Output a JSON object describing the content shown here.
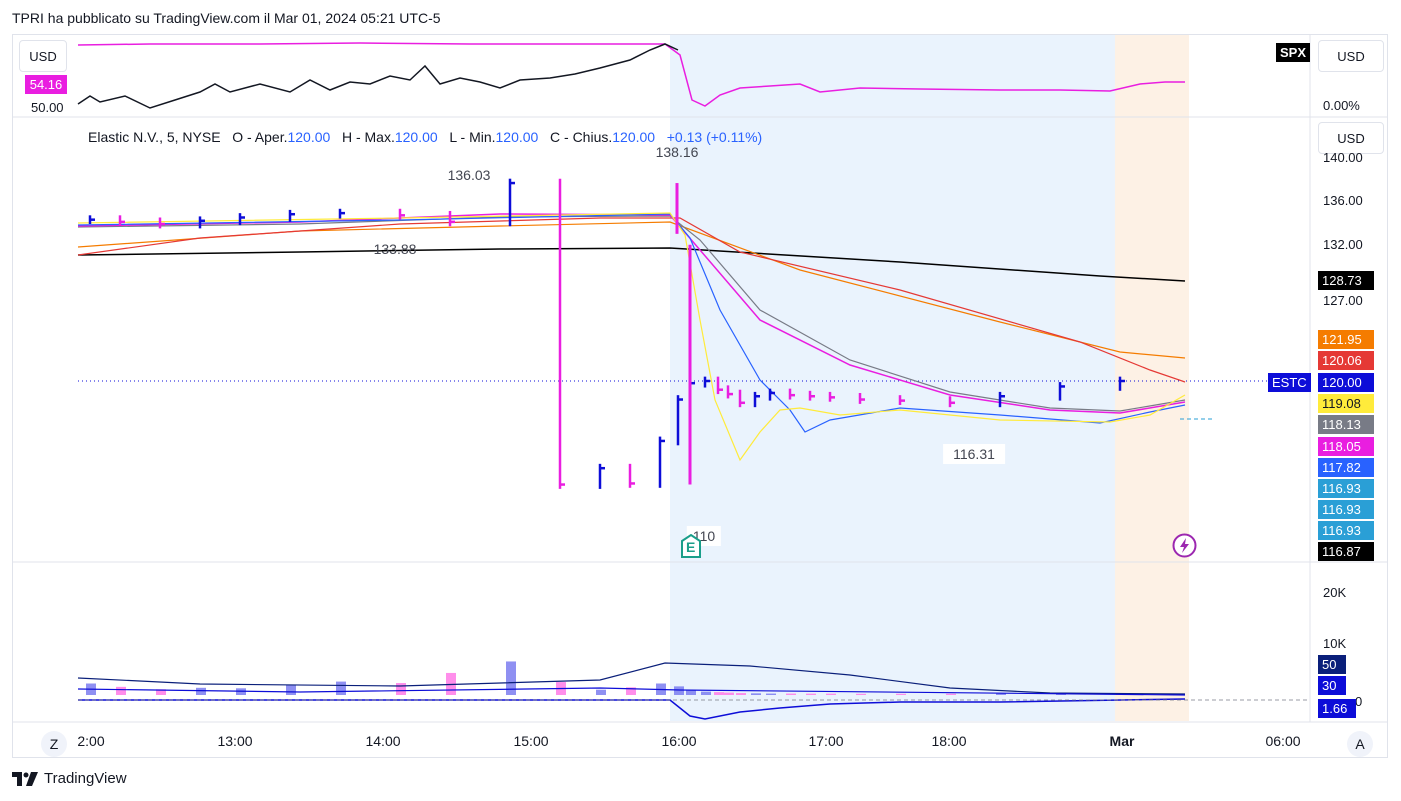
{
  "header": {
    "published": "TPRI ha pubblicato su TradingView.com il Mar 01, 2024 05:21 UTC-5"
  },
  "currency_pills": {
    "top_left": "USD",
    "top_right": "USD",
    "main_right": "USD"
  },
  "compare_pane": {
    "symbol": "SPX",
    "tag_value": "54.16",
    "left_value": "50.00",
    "right_value": "0.00%"
  },
  "legend": {
    "name": "Elastic N.V., 5, NYSE",
    "o_label": "O - Aper.",
    "o_value": "120.00",
    "h_label": "H - Max.",
    "h_value": "120.00",
    "l_label": "L - Min.",
    "l_value": "120.00",
    "c_label": "C - Chius.",
    "c_value": "120.00",
    "change": "+0.13 (+0.11%)"
  },
  "annotations": {
    "high_label": "138.16",
    "low_label": "110",
    "left_high": "136.03",
    "left_low": "133.88",
    "mid_low": "116.31"
  },
  "price_axis": [
    "140.00",
    "136.00",
    "132.00",
    "127.00"
  ],
  "price_tags": [
    {
      "text": "128.73",
      "bg": "#000000",
      "fg": "#ffffff"
    },
    {
      "text": "121.95",
      "bg": "#f57c00",
      "fg": "#ffffff"
    },
    {
      "text": "120.06",
      "bg": "#e53935",
      "fg": "#ffffff"
    },
    {
      "text": "120.00",
      "bg": "#0d0dd8",
      "fg": "#ffffff"
    },
    {
      "text": "119.08",
      "bg": "#ffeb3b",
      "fg": "#131722"
    },
    {
      "text": "118.13",
      "bg": "#787b86",
      "fg": "#ffffff"
    },
    {
      "text": "118.05",
      "bg": "#e91ee0",
      "fg": "#ffffff"
    },
    {
      "text": "117.82",
      "bg": "#2962ff",
      "fg": "#ffffff"
    },
    {
      "text": "116.93",
      "bg": "#2a9fd6",
      "fg": "#ffffff"
    },
    {
      "text": "116.93",
      "bg": "#2a9fd6",
      "fg": "#ffffff"
    },
    {
      "text": "116.93",
      "bg": "#2a9fd6",
      "fg": "#ffffff"
    },
    {
      "text": "116.87",
      "bg": "#000000",
      "fg": "#ffffff"
    }
  ],
  "symbol_tag": "ESTC",
  "volume_axis": [
    "20K",
    "10K"
  ],
  "volume_tags": [
    {
      "text": "50",
      "bg": "#0a1f7a",
      "fg": "#ffffff"
    },
    {
      "text": "30",
      "bg": "#0d0dd8",
      "fg": "#ffffff"
    },
    {
      "text": "1.66",
      "bg": "#0d0dd8",
      "fg": "#ffffff"
    }
  ],
  "volume_zero": "0",
  "time_axis": [
    "2:00",
    "13:00",
    "14:00",
    "15:00",
    "16:00",
    "17:00",
    "18:00",
    "Mar",
    "06:00"
  ],
  "buttons": {
    "left": "Z",
    "right": "A"
  },
  "earnings_icon": "E",
  "brand": "TradingView",
  "colors": {
    "up": "#0d0dd8",
    "down": "#e91ee0",
    "session_blue": "#eaf3fd",
    "session_orange": "#fdf1e5"
  },
  "chart_data": {
    "type": "line",
    "symbol": "ESTC",
    "interval": "5",
    "x": [
      "12:05",
      "12:30",
      "13:00",
      "13:30",
      "14:00",
      "14:30",
      "15:00",
      "15:30",
      "15:55",
      "16:00",
      "16:05",
      "16:10",
      "16:15",
      "16:20",
      "16:25",
      "16:30",
      "16:35",
      "16:40",
      "16:45",
      "16:50",
      "17:00",
      "17:15",
      "17:30",
      "18:00",
      "18:30",
      "19:00",
      "20:00",
      "04:00",
      "04:30",
      "05:00",
      "05:20"
    ],
    "series": [
      {
        "name": "ESTC close",
        "values": [
          134.8,
          134.6,
          134.4,
          134.7,
          135.0,
          135.3,
          135.4,
          135.2,
          134.6,
          138.16,
          110.5,
          112.0,
          110.6,
          114.5,
          118.3,
          119.8,
          120.0,
          119.2,
          118.8,
          118.0,
          118.6,
          118.9,
          118.7,
          118.6,
          118.5,
          118.3,
          118.2,
          118.0,
          118.6,
          119.5,
          120.0
        ]
      }
    ],
    "annotations": {
      "high": 138.16,
      "low": 110,
      "left_high": 136.03,
      "left_low": 133.88,
      "mid_low": 116.31
    },
    "ylim": [
      109,
      141
    ],
    "volume": [
      2400,
      1700,
      1200,
      1500,
      1400,
      2100,
      2800,
      2500,
      4600,
      7000,
      2700,
      1100,
      1600,
      2400,
      1800,
      1000,
      700,
      600,
      500,
      400,
      350,
      300,
      300,
      280,
      280,
      250,
      260,
      270,
      300,
      320,
      330
    ]
  }
}
